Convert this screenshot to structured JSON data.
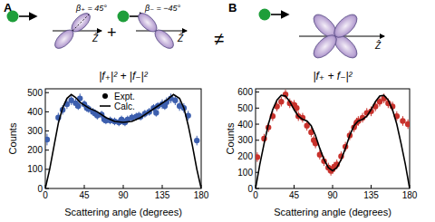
{
  "chart_data": [
    {
      "type": "scatter",
      "label": "A",
      "title": "|f₊|² + |f₋|²",
      "annotations": [
        "β₊ = 45°",
        "β₋ = −45°",
        "Ẑ",
        "Ẑ",
        "+",
        "≠"
      ],
      "x_label": "Scattering angle (degrees)",
      "y_label": "Counts",
      "xlim": [
        0,
        180
      ],
      "xticks": [
        0,
        45,
        90,
        135,
        180
      ],
      "ylim": [
        0,
        520
      ],
      "yticks": [
        0,
        100,
        200,
        300,
        400,
        500
      ],
      "grid": false,
      "legend": "top",
      "series": [
        {
          "name": "Expt.",
          "type": "scatter",
          "marker": "circle",
          "color": "#3d5fae",
          "x": [
            2,
            15,
            20,
            25,
            30,
            35,
            38,
            40,
            45,
            48,
            50,
            55,
            58,
            60,
            65,
            68,
            70,
            75,
            80,
            85,
            88,
            90,
            92,
            95,
            100,
            105,
            108,
            110,
            115,
            120,
            125,
            128,
            130,
            135,
            138,
            140,
            145,
            150,
            155,
            160,
            165,
            175
          ],
          "values": [
            255,
            370,
            410,
            440,
            460,
            445,
            430,
            470,
            440,
            420,
            415,
            400,
            390,
            380,
            385,
            360,
            355,
            355,
            350,
            345,
            360,
            350,
            345,
            360,
            370,
            375,
            380,
            375,
            390,
            400,
            420,
            395,
            430,
            440,
            430,
            450,
            470,
            460,
            430,
            420,
            380,
            250
          ],
          "error": [
            30,
            25,
            25,
            25,
            25,
            25,
            20,
            25,
            20,
            20,
            20,
            20,
            20,
            20,
            20,
            20,
            20,
            20,
            20,
            20,
            20,
            20,
            20,
            20,
            20,
            20,
            20,
            20,
            20,
            20,
            20,
            20,
            20,
            25,
            20,
            25,
            25,
            25,
            25,
            25,
            25,
            25
          ]
        },
        {
          "name": "Calc.",
          "type": "line",
          "line_style": "solid",
          "color": "#000000",
          "x": [
            0,
            5,
            10,
            15,
            20,
            25,
            30,
            35,
            40,
            50,
            60,
            70,
            80,
            90,
            100,
            110,
            120,
            130,
            140,
            148,
            155,
            160,
            165,
            170,
            175,
            180
          ],
          "values": [
            0,
            100,
            220,
            340,
            420,
            470,
            490,
            475,
            450,
            420,
            400,
            370,
            350,
            345,
            350,
            370,
            400,
            430,
            460,
            490,
            470,
            420,
            330,
            220,
            100,
            0
          ]
        }
      ]
    },
    {
      "type": "scatter",
      "label": "B",
      "title": "|f₊ + f₋|²",
      "annotations": [
        "Ẑ"
      ],
      "x_label": "Scattering angle (degrees)",
      "y_label": "Counts",
      "xlim": [
        0,
        180
      ],
      "xticks": [
        0,
        45,
        90,
        135,
        180
      ],
      "ylim": [
        0,
        620
      ],
      "yticks": [
        0,
        100,
        200,
        300,
        400,
        500,
        600
      ],
      "grid": false,
      "series": [
        {
          "type": "scatter",
          "marker": "circle",
          "color": "#c8322c",
          "x": [
            2,
            10,
            15,
            20,
            25,
            30,
            35,
            40,
            45,
            48,
            50,
            55,
            60,
            65,
            68,
            70,
            75,
            80,
            85,
            88,
            90,
            92,
            95,
            100,
            105,
            110,
            115,
            118,
            120,
            125,
            130,
            135,
            140,
            145,
            150,
            155,
            160,
            165,
            172,
            178
          ],
          "values": [
            195,
            310,
            380,
            450,
            510,
            540,
            585,
            530,
            520,
            500,
            450,
            440,
            390,
            350,
            300,
            280,
            210,
            170,
            130,
            110,
            120,
            135,
            150,
            200,
            260,
            330,
            380,
            410,
            420,
            440,
            470,
            480,
            510,
            540,
            560,
            530,
            510,
            450,
            420,
            400
          ],
          "error": [
            30,
            30,
            30,
            30,
            30,
            30,
            30,
            30,
            30,
            30,
            30,
            30,
            30,
            30,
            30,
            30,
            30,
            30,
            30,
            30,
            30,
            30,
            30,
            30,
            30,
            30,
            30,
            30,
            30,
            30,
            30,
            30,
            30,
            30,
            30,
            30,
            30,
            30,
            30,
            30
          ]
        },
        {
          "type": "line",
          "line_style": "solid",
          "color": "#000000",
          "x": [
            0,
            5,
            10,
            15,
            20,
            25,
            30,
            35,
            40,
            45,
            50,
            55,
            60,
            65,
            70,
            75,
            80,
            85,
            90,
            95,
            100,
            105,
            110,
            115,
            120,
            125,
            130,
            135,
            140,
            145,
            150,
            155,
            160,
            165,
            170,
            175,
            180
          ],
          "values": [
            0,
            150,
            280,
            400,
            490,
            550,
            580,
            575,
            540,
            490,
            450,
            430,
            420,
            390,
            330,
            250,
            180,
            130,
            110,
            130,
            180,
            250,
            330,
            390,
            420,
            430,
            450,
            490,
            540,
            575,
            580,
            550,
            490,
            400,
            280,
            150,
            0
          ]
        }
      ]
    }
  ]
}
